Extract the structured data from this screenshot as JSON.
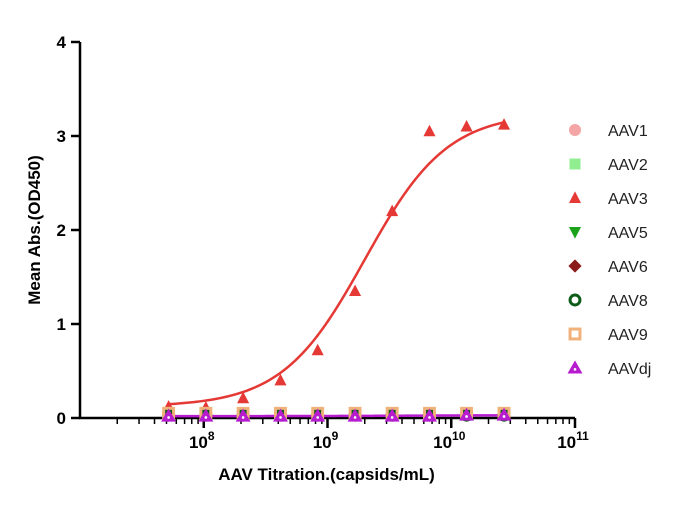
{
  "chart_data": {
    "type": "scatter",
    "xlabel": "AAV Titration.(capsids/mL)",
    "ylabel": "Mean Abs.(OD450)",
    "xscale": "log",
    "xlim": [
      10000000,
      100000000000
    ],
    "ylim": [
      0,
      4
    ],
    "yticks": [
      0,
      1,
      2,
      3,
      4
    ],
    "xticks": [
      {
        "base": "10",
        "exp": "8"
      },
      {
        "base": "10",
        "exp": "9"
      },
      {
        "base": "10",
        "exp": "10"
      },
      {
        "base": "10",
        "exp": "11"
      }
    ],
    "legend_position": "right",
    "x": [
      52000000,
      104000000,
      208000000,
      417000000,
      833000000,
      1670000000,
      3330000000,
      6670000000,
      13300000000,
      26700000000
    ],
    "series": [
      {
        "name": "AAV1",
        "color": "#f4a6a6",
        "marker": "circle",
        "values": [
          0.04,
          0.04,
          0.04,
          0.04,
          0.04,
          0.04,
          0.04,
          0.04,
          0.04,
          0.04
        ]
      },
      {
        "name": "AAV2",
        "color": "#90ee90",
        "marker": "square",
        "values": [
          0.03,
          0.03,
          0.03,
          0.03,
          0.03,
          0.03,
          0.03,
          0.03,
          0.03,
          0.03
        ]
      },
      {
        "name": "AAV3",
        "color": "#e53935",
        "marker": "triangle-up",
        "values": [
          0.12,
          0.11,
          0.21,
          0.4,
          0.72,
          1.35,
          2.2,
          3.05,
          3.1,
          3.12
        ],
        "fit": {
          "bottom": 0.12,
          "top": 3.25,
          "ec50": 2000000000,
          "hill": 1.3
        }
      },
      {
        "name": "AAV5",
        "color": "#1aa31a",
        "marker": "triangle-down",
        "values": [
          0.03,
          0.03,
          0.03,
          0.03,
          0.03,
          0.03,
          0.03,
          0.03,
          0.03,
          0.03
        ]
      },
      {
        "name": "AAV6",
        "color": "#8b1a1a",
        "marker": "diamond",
        "values": [
          0.03,
          0.03,
          0.03,
          0.03,
          0.03,
          0.03,
          0.03,
          0.03,
          0.03,
          0.03
        ]
      },
      {
        "name": "AAV8",
        "color": "#0d5c1a",
        "marker": "ring",
        "values": [
          0.03,
          0.03,
          0.03,
          0.03,
          0.03,
          0.03,
          0.03,
          0.03,
          0.03,
          0.03
        ]
      },
      {
        "name": "AAV9",
        "color": "#f0b27a",
        "marker": "hollow-square",
        "values": [
          0.05,
          0.05,
          0.05,
          0.05,
          0.05,
          0.05,
          0.05,
          0.05,
          0.05,
          0.05
        ]
      },
      {
        "name": "AAVdj",
        "color": "#b71ccf",
        "marker": "hollow-triangle",
        "values": [
          0.02,
          0.02,
          0.02,
          0.02,
          0.02,
          0.02,
          0.02,
          0.02,
          0.03,
          0.03
        ],
        "fit": {
          "bottom": 0.02,
          "top": 0.03,
          "ec50": 5000000000,
          "hill": 1.0
        }
      }
    ]
  }
}
